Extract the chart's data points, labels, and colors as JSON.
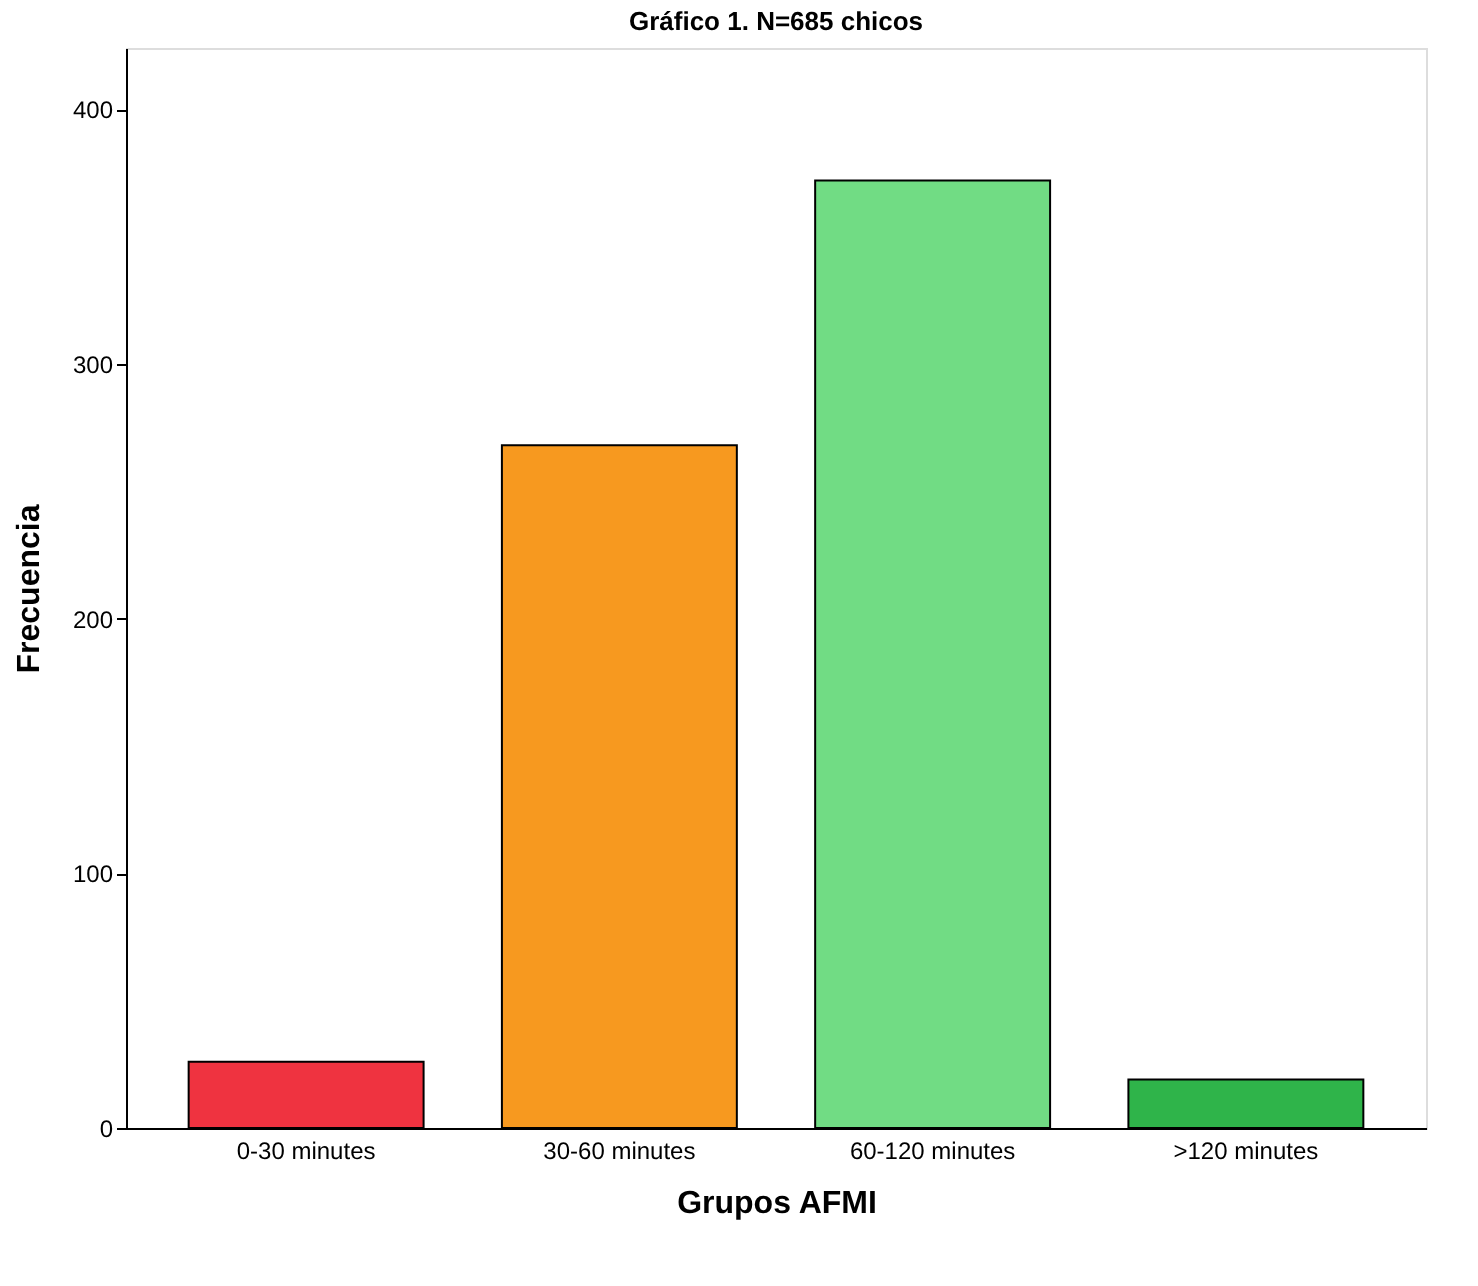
{
  "chart_data": {
    "type": "bar",
    "title": "Gráfico 1. N=685 chicos",
    "xlabel": "Grupos AFMI",
    "ylabel": "Frecuencia",
    "categories": [
      "0-30 minutes",
      "30-60 minutes",
      "60-120 minutes",
      ">120 minutes"
    ],
    "values": [
      26,
      268,
      372,
      19
    ],
    "colors": [
      "#ef3340",
      "#f7991f",
      "#71dc84",
      "#2fb44a"
    ],
    "ylim": [
      0,
      424
    ],
    "yticks": [
      0,
      100,
      200,
      300,
      400
    ],
    "grid": false
  }
}
